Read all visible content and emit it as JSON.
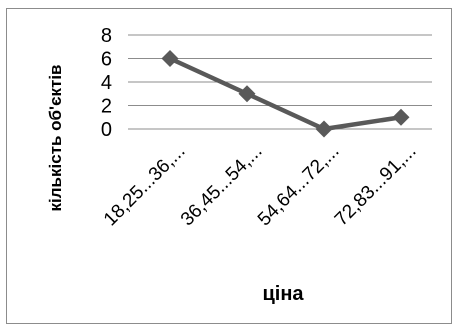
{
  "chart_data": {
    "type": "line",
    "title": "",
    "xlabel": "ціна",
    "ylabel": "кількість об'єктів",
    "categories": [
      "18,25...36,...",
      "36,45...54,...",
      "54,64...72,...",
      "72,83...91,..."
    ],
    "series": [
      {
        "values": [
          6,
          3,
          0,
          1
        ]
      }
    ],
    "ylim": [
      0,
      8
    ],
    "yticks": [
      "0",
      "2",
      "4",
      "6",
      "8"
    ],
    "grid": true,
    "legend": "none",
    "colors": {
      "line": "#595959",
      "marker": "#595959",
      "grid": "#8c8c8c",
      "axis": "#8c8c8c"
    }
  }
}
